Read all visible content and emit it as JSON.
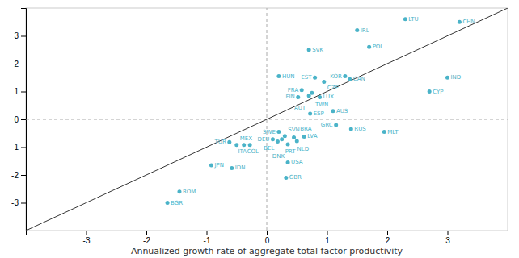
{
  "chart_data": {
    "type": "scatter",
    "xlabel": "Annualized growth rate of aggregate total factor productivity",
    "xlim": [
      -4,
      4
    ],
    "ylim": [
      -4,
      4
    ],
    "xticks": [
      -3,
      -2,
      -1,
      0,
      1,
      2,
      3
    ],
    "yticks": [
      -3,
      -2,
      -1,
      0,
      1,
      2,
      3
    ],
    "color": "#4ab3c8",
    "reference_lines": [
      {
        "axis": "y",
        "value": 0
      },
      {
        "axis": "x",
        "value": 0
      }
    ],
    "labels": [
      "CHN",
      "LTU",
      "IRL",
      "POL",
      "SVK",
      "IND",
      "CYP",
      "KOR",
      "CAN",
      "EST",
      "CZE",
      "HUN",
      "FRA",
      "TWN",
      "AUT",
      "FIN",
      "LUX",
      "AUS",
      "ESP",
      "GRC",
      "RUS",
      "MLT",
      "SWE",
      "SVN",
      "NLD",
      "LVA",
      "DEU",
      "PRT",
      "BEL",
      "BRA",
      "DNK",
      "TUR",
      "MEX",
      "COL",
      "ITA",
      "JPN",
      "IDN",
      "USA",
      "GBR",
      "ROM",
      "BGR"
    ],
    "x": [
      3.2,
      2.3,
      1.5,
      1.7,
      0.7,
      3.0,
      2.7,
      1.3,
      1.38,
      0.8,
      0.95,
      0.2,
      0.58,
      0.75,
      0.7,
      0.52,
      0.88,
      1.1,
      0.72,
      1.15,
      1.4,
      1.95,
      0.2,
      0.3,
      0.45,
      0.62,
      0.1,
      0.25,
      0.18,
      0.5,
      0.35,
      -0.62,
      -0.5,
      -0.38,
      -0.28,
      -0.92,
      -0.58,
      0.35,
      0.32,
      -1.45,
      -1.65
    ],
    "values": [
      3.5,
      3.6,
      3.2,
      2.6,
      2.5,
      1.5,
      1.0,
      1.55,
      1.44,
      1.5,
      1.35,
      1.55,
      1.05,
      0.95,
      0.85,
      0.8,
      0.8,
      0.3,
      0.2,
      -0.2,
      -0.35,
      -0.45,
      -0.45,
      -0.6,
      -0.65,
      -0.62,
      -0.72,
      -0.72,
      -0.8,
      -0.78,
      -0.9,
      -0.82,
      -0.92,
      -0.92,
      -0.92,
      -1.65,
      -1.75,
      -1.55,
      -2.1,
      -2.6,
      -3.0
    ]
  }
}
